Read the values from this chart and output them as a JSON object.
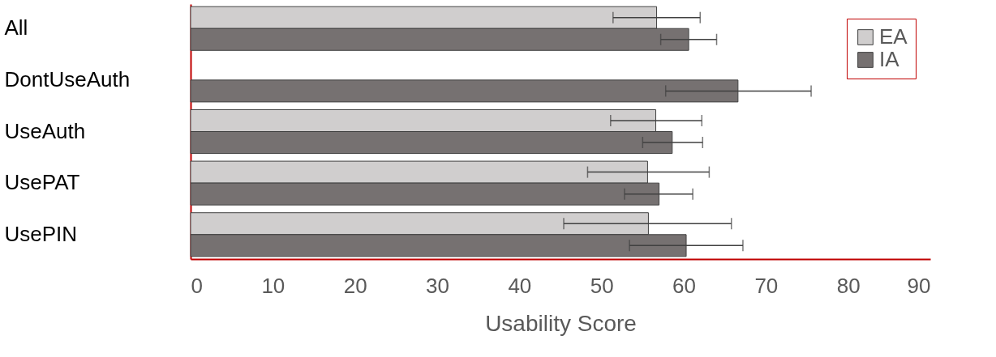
{
  "chart_data": {
    "type": "bar",
    "orientation": "horizontal",
    "xlabel": "Usability Score",
    "categories": [
      "All",
      "DontUseAuth",
      "UseAuth",
      "UsePAT",
      "UsePIN"
    ],
    "series": [
      {
        "name": "EA",
        "color": "#d0cece",
        "values": [
          56.7,
          null,
          56.6,
          55.6,
          55.7
        ],
        "errors": [
          [
            51.4,
            62.0
          ],
          null,
          [
            51.1,
            62.2
          ],
          [
            48.3,
            63.1
          ],
          [
            45.4,
            65.8
          ]
        ]
      },
      {
        "name": "IA",
        "color": "#767171",
        "values": [
          60.6,
          66.6,
          58.6,
          57.0,
          60.3
        ],
        "errors": [
          [
            57.2,
            64.0
          ],
          [
            57.8,
            75.5
          ],
          [
            55.0,
            62.3
          ],
          [
            52.8,
            61.1
          ],
          [
            53.4,
            67.2
          ]
        ]
      }
    ],
    "xlim": [
      0,
      90
    ],
    "xticks": [
      0,
      10,
      20,
      30,
      40,
      50,
      60,
      70,
      80,
      90
    ],
    "grid": false,
    "legend": "top right"
  }
}
